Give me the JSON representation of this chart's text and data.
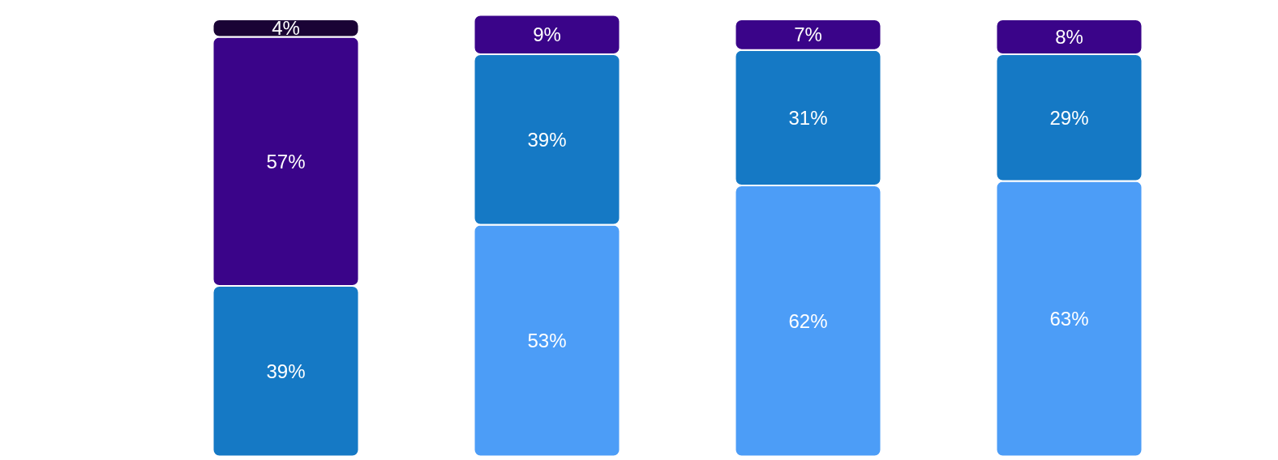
{
  "chart_data": {
    "type": "bar",
    "stacked": true,
    "categories": [
      null,
      null,
      null,
      null
    ],
    "series": [
      {
        "color": "#4c9df7",
        "values": [
          null,
          53,
          62,
          63
        ],
        "value_labels": [
          null,
          "53%",
          "62%",
          "63%"
        ]
      },
      {
        "color": "#1579c5",
        "values": [
          39,
          39,
          31,
          29
        ],
        "value_labels": [
          "39%",
          "39%",
          "31%",
          "29%"
        ]
      },
      {
        "color": "#3a0489",
        "values": [
          57,
          9,
          7,
          8
        ],
        "value_labels": [
          "57%",
          "9%",
          "7%",
          "8%"
        ]
      },
      {
        "color": "#1a0335",
        "values": [
          4,
          null,
          null,
          null
        ],
        "value_labels": [
          "4%",
          null,
          null,
          null
        ]
      }
    ],
    "grid": false
  }
}
